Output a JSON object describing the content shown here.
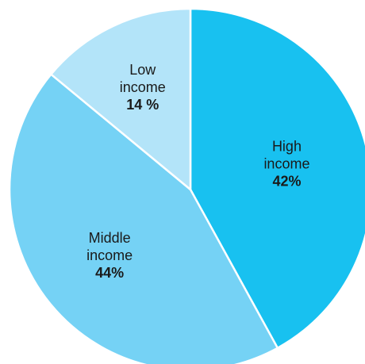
{
  "chart_data": {
    "type": "pie",
    "title": "",
    "slices": [
      {
        "label_lines": [
          "High",
          "income"
        ],
        "value_label": "42%",
        "value": 42,
        "color": "#18c1f0"
      },
      {
        "label_lines": [
          "Middle",
          "income"
        ],
        "value_label": "44%",
        "value": 44,
        "color": "#75d2f5"
      },
      {
        "label_lines": [
          "Low",
          "income"
        ],
        "value_label": "14 %",
        "value": 14,
        "color": "#b3e4f9"
      }
    ],
    "start_angle_deg": 0,
    "direction": "clockwise",
    "slice_border_color": "#ffffff"
  }
}
